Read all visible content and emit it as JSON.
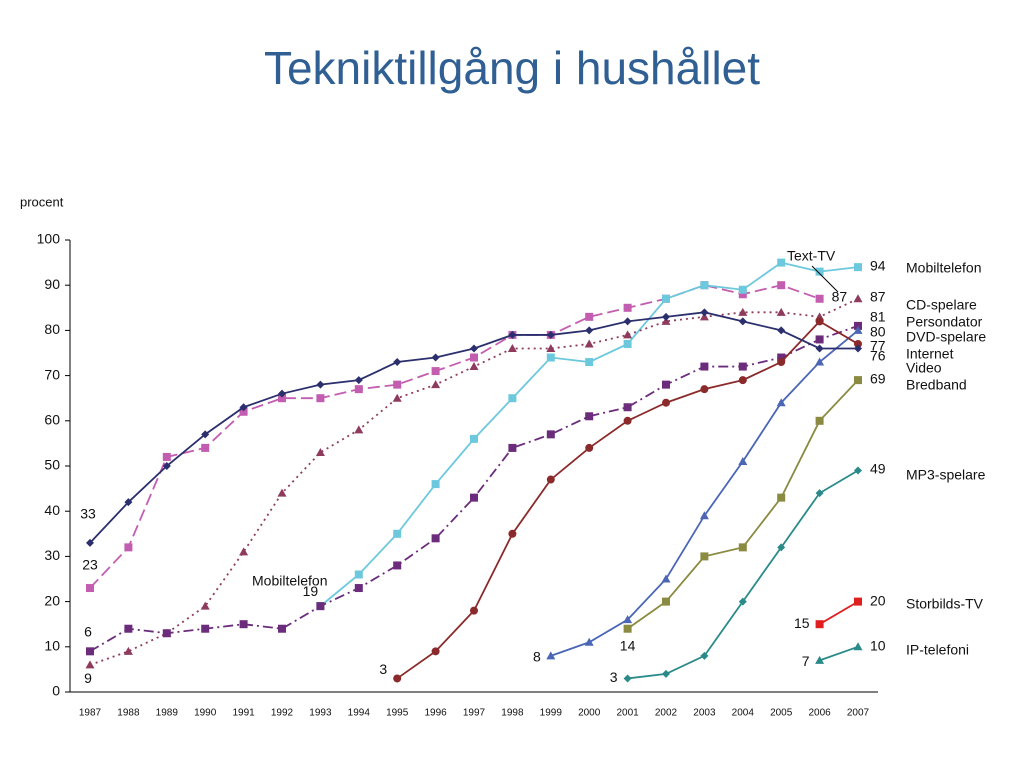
{
  "chart_data": {
    "type": "line",
    "title": "Tekniktillgång i hushållet",
    "ylabel": "procent",
    "annotations": [
      "Mobiltelefon"
    ],
    "categories": [
      "1987",
      "1988",
      "1989",
      "1990",
      "1991",
      "1992",
      "1993",
      "1994",
      "1995",
      "1996",
      "1997",
      "1998",
      "1999",
      "2000",
      "2001",
      "2002",
      "2003",
      "2004",
      "2005",
      "2006",
      "2007"
    ],
    "ylim": [
      0,
      100
    ],
    "yticks": [
      0,
      10,
      20,
      30,
      40,
      50,
      60,
      70,
      80,
      90,
      100
    ],
    "series": [
      {
        "name": "Text-TV",
        "color": "#c35db0",
        "marker": "square",
        "line": "dashed",
        "values": [
          23,
          32,
          52,
          54,
          62,
          65,
          65,
          67,
          68,
          71,
          74,
          79,
          79,
          83,
          85,
          87,
          90,
          88,
          90,
          87,
          null
        ]
      },
      {
        "name": "Mobiltelefon",
        "color": "#6cc9dd",
        "marker": "square",
        "line": "solid",
        "values": [
          null,
          null,
          null,
          null,
          null,
          null,
          19,
          26,
          35,
          46,
          56,
          65,
          74,
          73,
          77,
          87,
          90,
          89,
          95,
          93,
          94
        ]
      },
      {
        "name": "CD-spelare",
        "color": "#8e3b5e",
        "marker": "triangle",
        "line": "dotted",
        "values": [
          6,
          9,
          13,
          19,
          31,
          44,
          53,
          58,
          65,
          68,
          72,
          76,
          76,
          77,
          79,
          82,
          83,
          84,
          84,
          83,
          87
        ]
      },
      {
        "name": "Persondator",
        "color": "#6b2c7c",
        "marker": "square",
        "line": "dashdot",
        "values": [
          9,
          14,
          13,
          14,
          15,
          14,
          19,
          23,
          28,
          34,
          43,
          54,
          57,
          61,
          63,
          68,
          72,
          72,
          74,
          78,
          81
        ]
      },
      {
        "name": "DVD-spelare",
        "color": "#4a66b5",
        "marker": "triangle",
        "line": "solid",
        "values": [
          null,
          null,
          null,
          null,
          null,
          null,
          null,
          null,
          null,
          null,
          null,
          null,
          8,
          11,
          16,
          25,
          39,
          51,
          64,
          73,
          80
        ]
      },
      {
        "name": "Internet",
        "color": "#8b2a2a",
        "marker": "circle",
        "line": "solid",
        "values": [
          null,
          null,
          null,
          null,
          null,
          null,
          null,
          null,
          3,
          9,
          18,
          35,
          47,
          54,
          60,
          64,
          67,
          69,
          73,
          82,
          77
        ]
      },
      {
        "name": "Video",
        "color": "#2b2f6e",
        "marker": "diamond",
        "line": "solid",
        "values": [
          33,
          42,
          50,
          57,
          63,
          66,
          68,
          69,
          73,
          74,
          76,
          79,
          79,
          80,
          82,
          83,
          84,
          82,
          80,
          76,
          76
        ]
      },
      {
        "name": "Bredband",
        "color": "#8a8a40",
        "marker": "square",
        "line": "solid",
        "values": [
          null,
          null,
          null,
          null,
          null,
          null,
          null,
          null,
          null,
          null,
          null,
          null,
          null,
          null,
          14,
          20,
          30,
          32,
          43,
          60,
          69
        ]
      },
      {
        "name": "MP3-spelare",
        "color": "#2a8a8a",
        "marker": "diamond",
        "line": "solid",
        "values": [
          null,
          null,
          null,
          null,
          null,
          null,
          null,
          null,
          null,
          null,
          null,
          null,
          null,
          null,
          3,
          4,
          8,
          20,
          32,
          44,
          49
        ]
      },
      {
        "name": "Storbilds-TV",
        "color": "#e02020",
        "marker": "square",
        "line": "solid",
        "values": [
          null,
          null,
          null,
          null,
          null,
          null,
          null,
          null,
          null,
          null,
          null,
          null,
          null,
          null,
          null,
          null,
          null,
          null,
          null,
          15,
          20
        ]
      },
      {
        "name": "IP-telefoni",
        "color": "#2a8a8a",
        "marker": "triangle",
        "line": "solid",
        "values": [
          null,
          null,
          null,
          null,
          null,
          null,
          null,
          null,
          null,
          null,
          null,
          null,
          null,
          null,
          null,
          null,
          null,
          null,
          null,
          7,
          10
        ]
      }
    ]
  }
}
